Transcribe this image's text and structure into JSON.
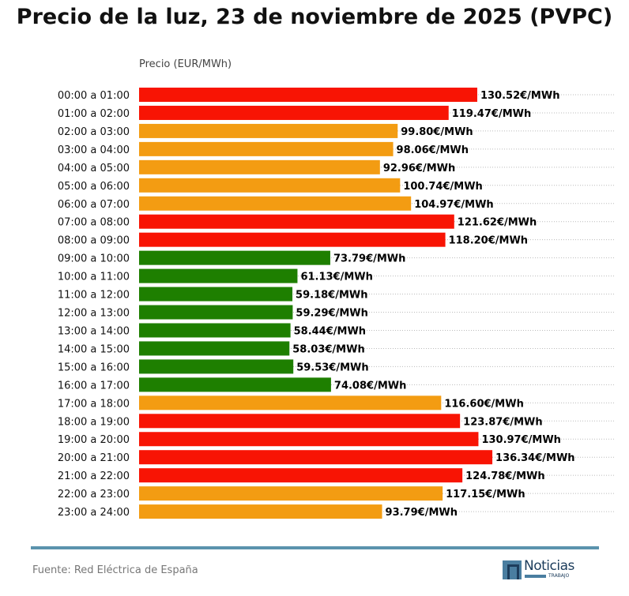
{
  "chart_data": {
    "type": "bar",
    "orientation": "horizontal",
    "title": "Precio de la luz, 23 de noviembre de 2025 (PVPC)",
    "xlabel": "Precio (EUR/MWh)",
    "value_suffix": "€/MWh",
    "grid": "dotted horizontal lines per row",
    "colors": {
      "high": "#f81404",
      "mid": "#f39c12",
      "low": "#1e7f00"
    },
    "categories": [
      "00:00 a 01:00",
      "01:00 a 02:00",
      "02:00 a 03:00",
      "03:00 a 04:00",
      "04:00 a 05:00",
      "05:00 a 06:00",
      "06:00 a 07:00",
      "07:00 a 08:00",
      "08:00 a 09:00",
      "09:00 a 10:00",
      "10:00 a 11:00",
      "11:00 a 12:00",
      "12:00 a 13:00",
      "13:00 a 14:00",
      "14:00 a 15:00",
      "15:00 a 16:00",
      "16:00 a 17:00",
      "17:00 a 18:00",
      "18:00 a 19:00",
      "19:00 a 20:00",
      "20:00 a 21:00",
      "21:00 a 22:00",
      "22:00 a 23:00",
      "23:00 a 24:00"
    ],
    "values": [
      130.52,
      119.47,
      99.8,
      98.06,
      92.96,
      100.74,
      104.97,
      121.62,
      118.2,
      73.79,
      61.13,
      59.18,
      59.29,
      58.44,
      58.03,
      59.53,
      74.08,
      116.6,
      123.87,
      130.97,
      136.34,
      124.78,
      117.15,
      93.79
    ],
    "levels": [
      "high",
      "high",
      "mid",
      "mid",
      "mid",
      "mid",
      "mid",
      "high",
      "high",
      "low",
      "low",
      "low",
      "low",
      "low",
      "low",
      "low",
      "low",
      "mid",
      "high",
      "high",
      "high",
      "high",
      "mid",
      "mid"
    ]
  },
  "footer": {
    "source": "Fuente: Red Eléctrica de España",
    "logo_text": "Noticias",
    "logo_sub": "TRABAJO"
  }
}
